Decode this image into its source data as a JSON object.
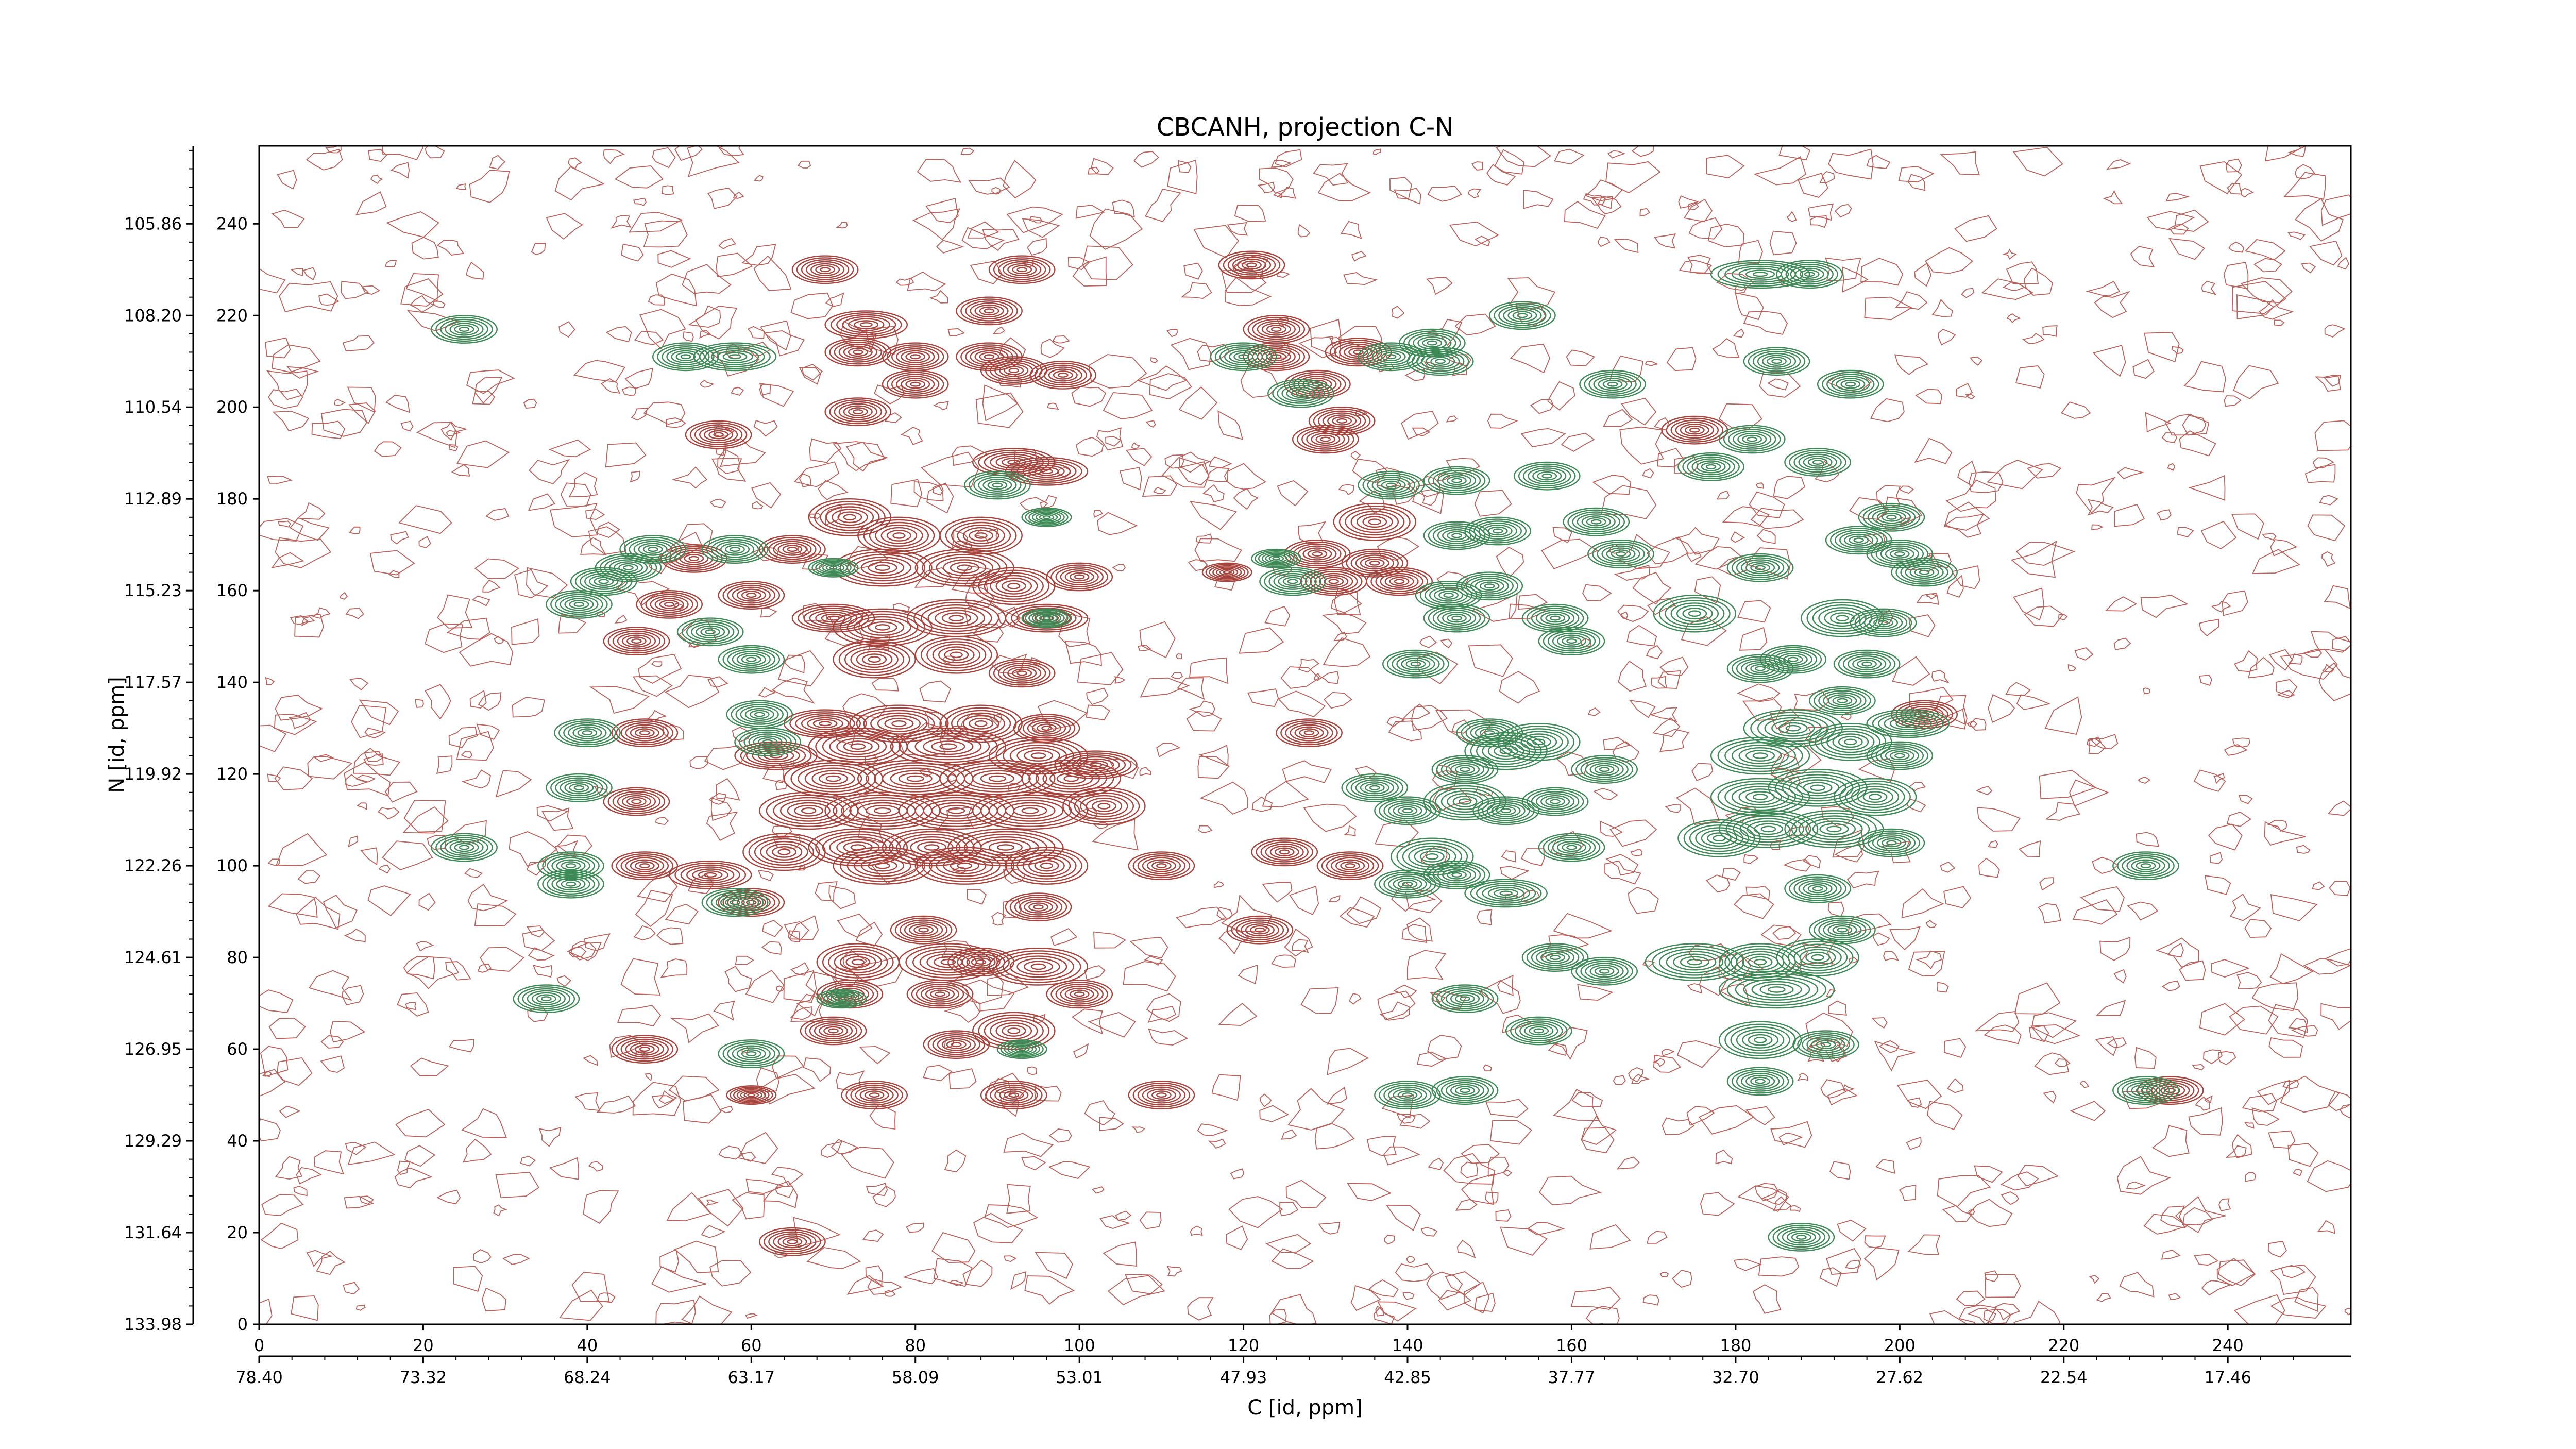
{
  "chart_data": {
    "type": "contour",
    "title": "CBCANH, projection C-N",
    "xlabel": "C [id, ppm]",
    "ylabel": "N [id, ppm]",
    "x_index_ticks": [
      0,
      20,
      40,
      60,
      80,
      100,
      120,
      140,
      160,
      180,
      200,
      220,
      240
    ],
    "y_index_ticks": [
      0,
      20,
      40,
      60,
      80,
      100,
      120,
      140,
      160,
      180,
      200,
      220,
      240
    ],
    "x_ppm_ticks": [
      "78.40",
      "73.32",
      "68.24",
      "63.17",
      "58.09",
      "53.01",
      "47.93",
      "42.85",
      "37.77",
      "32.70",
      "27.62",
      "22.54",
      "17.46"
    ],
    "y_ppm_ticks": [
      "133.98",
      "131.64",
      "129.29",
      "126.95",
      "124.61",
      "122.26",
      "119.92",
      "117.57",
      "115.23",
      "112.89",
      "110.54",
      "108.20",
      "105.86"
    ],
    "xlim": [
      0,
      255
    ],
    "ylim": [
      0,
      257
    ],
    "colors": {
      "positive": "#a8433c",
      "negative": "#3d8a56",
      "noise": "#b9615a"
    },
    "peaks_positive": [
      [
        65,
        18,
        4,
        3
      ],
      [
        92,
        50,
        4,
        3
      ],
      [
        75,
        50,
        4,
        3
      ],
      [
        60,
        50,
        3,
        2
      ],
      [
        110,
        50,
        4,
        3
      ],
      [
        47,
        60,
        4,
        3
      ],
      [
        70,
        64,
        4,
        3
      ],
      [
        85,
        61,
        4,
        3
      ],
      [
        92,
        64,
        5,
        4
      ],
      [
        100,
        72,
        4,
        3
      ],
      [
        72,
        72,
        4,
        3
      ],
      [
        83,
        72,
        4,
        3
      ],
      [
        73,
        79,
        5,
        4
      ],
      [
        84,
        79,
        6,
        4
      ],
      [
        95,
        78,
        6,
        4
      ],
      [
        88,
        79,
        4,
        3
      ],
      [
        81,
        86,
        4,
        3
      ],
      [
        122,
        86,
        4,
        3
      ],
      [
        60,
        92,
        4,
        3
      ],
      [
        95,
        91,
        4,
        3
      ],
      [
        110,
        100,
        4,
        3
      ],
      [
        47,
        100,
        4,
        3
      ],
      [
        55,
        98,
        5,
        3
      ],
      [
        125,
        103,
        4,
        3
      ],
      [
        133,
        100,
        4,
        3
      ],
      [
        64,
        103,
        5,
        4
      ],
      [
        73,
        104,
        6,
        4
      ],
      [
        82,
        104,
        6,
        4
      ],
      [
        91,
        104,
        7,
        4
      ],
      [
        76,
        100,
        6,
        4
      ],
      [
        86,
        100,
        6,
        4
      ],
      [
        96,
        100,
        5,
        4
      ],
      [
        67,
        112,
        6,
        4
      ],
      [
        76,
        112,
        7,
        4
      ],
      [
        85,
        112,
        7,
        4
      ],
      [
        94,
        112,
        7,
        4
      ],
      [
        103,
        113,
        5,
        4
      ],
      [
        70,
        119,
        6,
        4
      ],
      [
        80,
        119,
        7,
        4
      ],
      [
        90,
        119,
        7,
        4
      ],
      [
        99,
        119,
        6,
        4
      ],
      [
        63,
        124,
        5,
        3
      ],
      [
        73,
        126,
        6,
        4
      ],
      [
        84,
        126,
        7,
        4
      ],
      [
        95,
        124,
        6,
        4
      ],
      [
        102,
        122,
        5,
        3
      ],
      [
        69,
        131,
        5,
        3
      ],
      [
        78,
        131,
        6,
        4
      ],
      [
        88,
        131,
        5,
        4
      ],
      [
        96,
        130,
        4,
        3
      ],
      [
        47,
        129,
        4,
        3
      ],
      [
        46,
        114,
        4,
        3
      ],
      [
        128,
        129,
        4,
        3
      ],
      [
        203,
        133,
        4,
        3
      ],
      [
        75,
        145,
        5,
        4
      ],
      [
        85,
        146,
        5,
        4
      ],
      [
        93,
        142,
        4,
        3
      ],
      [
        76,
        152,
        6,
        4
      ],
      [
        85,
        154,
        6,
        4
      ],
      [
        70,
        154,
        5,
        3
      ],
      [
        96,
        154,
        5,
        3
      ],
      [
        46,
        149,
        4,
        3
      ],
      [
        50,
        157,
        4,
        3
      ],
      [
        60,
        159,
        4,
        3
      ],
      [
        92,
        161,
        5,
        4
      ],
      [
        100,
        163,
        4,
        3
      ],
      [
        76,
        165,
        6,
        4
      ],
      [
        86,
        165,
        6,
        4
      ],
      [
        53,
        167,
        4,
        3
      ],
      [
        65,
        169,
        4,
        3
      ],
      [
        78,
        172,
        5,
        4
      ],
      [
        88,
        172,
        5,
        4
      ],
      [
        72,
        176,
        5,
        4
      ],
      [
        136,
        175,
        5,
        4
      ],
      [
        136,
        166,
        4,
        3
      ],
      [
        131,
        162,
        4,
        3
      ],
      [
        118,
        164,
        3,
        2
      ],
      [
        129,
        168,
        4,
        3
      ],
      [
        139,
        162,
        4,
        3
      ],
      [
        96,
        186,
        5,
        3
      ],
      [
        92,
        188,
        5,
        3
      ],
      [
        56,
        194,
        4,
        3
      ],
      [
        73,
        199,
        4,
        3
      ],
      [
        80,
        205,
        4,
        3
      ],
      [
        80,
        211,
        4,
        3
      ],
      [
        73,
        212,
        4,
        3
      ],
      [
        92,
        208,
        4,
        3
      ],
      [
        89,
        211,
        4,
        3
      ],
      [
        98,
        207,
        4,
        3
      ],
      [
        74,
        218,
        5,
        3
      ],
      [
        89,
        221,
        4,
        3
      ],
      [
        69,
        230,
        4,
        3
      ],
      [
        93,
        230,
        4,
        3
      ],
      [
        121,
        231,
        4,
        3
      ],
      [
        124,
        211,
        4,
        3
      ],
      [
        129,
        205,
        4,
        3
      ],
      [
        124,
        217,
        4,
        3
      ],
      [
        132,
        197,
        4,
        3
      ],
      [
        130,
        193,
        4,
        3
      ],
      [
        134,
        212,
        4,
        3
      ],
      [
        175,
        195,
        4,
        3
      ],
      [
        233,
        51,
        4,
        3
      ]
    ],
    "peaks_negative": [
      [
        39,
        117,
        4,
        3
      ],
      [
        40,
        129,
        4,
        3
      ],
      [
        25,
        104,
        4,
        3
      ],
      [
        38,
        100,
        4,
        3
      ],
      [
        38,
        96,
        4,
        3
      ],
      [
        58,
        92,
        4,
        3
      ],
      [
        60,
        59,
        4,
        3
      ],
      [
        35,
        71,
        4,
        3
      ],
      [
        71,
        71,
        3,
        2
      ],
      [
        93,
        60,
        3,
        2
      ],
      [
        140,
        50,
        4,
        3
      ],
      [
        147,
        51,
        4,
        3
      ],
      [
        147,
        71,
        4,
        3
      ],
      [
        156,
        64,
        4,
        3
      ],
      [
        158,
        80,
        4,
        3
      ],
      [
        164,
        77,
        4,
        3
      ],
      [
        175,
        79,
        6,
        4
      ],
      [
        183,
        79,
        5,
        4
      ],
      [
        190,
        80,
        5,
        4
      ],
      [
        185,
        73,
        7,
        4
      ],
      [
        191,
        61,
        4,
        3
      ],
      [
        183,
        62,
        5,
        4
      ],
      [
        183,
        53,
        4,
        3
      ],
      [
        188,
        19,
        4,
        3
      ],
      [
        193,
        86,
        4,
        3
      ],
      [
        190,
        95,
        4,
        3
      ],
      [
        178,
        106,
        5,
        4
      ],
      [
        184,
        108,
        6,
        4
      ],
      [
        192,
        108,
        6,
        4
      ],
      [
        199,
        105,
        4,
        3
      ],
      [
        140,
        96,
        4,
        3
      ],
      [
        143,
        102,
        5,
        4
      ],
      [
        146,
        98,
        4,
        3
      ],
      [
        152,
        94,
        5,
        3
      ],
      [
        160,
        104,
        4,
        3
      ],
      [
        164,
        121,
        4,
        3
      ],
      [
        147,
        114,
        5,
        4
      ],
      [
        147,
        121,
        4,
        3
      ],
      [
        152,
        112,
        4,
        3
      ],
      [
        158,
        114,
        4,
        3
      ],
      [
        136,
        117,
        4,
        3
      ],
      [
        140,
        112,
        4,
        3
      ],
      [
        152,
        125,
        5,
        4
      ],
      [
        156,
        127,
        5,
        4
      ],
      [
        150,
        129,
        4,
        3
      ],
      [
        183,
        115,
        6,
        4
      ],
      [
        190,
        117,
        6,
        4
      ],
      [
        197,
        115,
        5,
        4
      ],
      [
        183,
        124,
        6,
        4
      ],
      [
        187,
        130,
        6,
        4
      ],
      [
        194,
        127,
        5,
        4
      ],
      [
        201,
        131,
        5,
        3
      ],
      [
        200,
        124,
        4,
        3
      ],
      [
        193,
        136,
        4,
        3
      ],
      [
        183,
        143,
        4,
        3
      ],
      [
        187,
        145,
        4,
        3
      ],
      [
        196,
        144,
        4,
        3
      ],
      [
        193,
        154,
        5,
        4
      ],
      [
        198,
        153,
        4,
        3
      ],
      [
        175,
        155,
        5,
        4
      ],
      [
        160,
        149,
        4,
        3
      ],
      [
        158,
        154,
        4,
        3
      ],
      [
        146,
        154,
        4,
        3
      ],
      [
        141,
        144,
        4,
        3
      ],
      [
        145,
        159,
        4,
        3
      ],
      [
        150,
        161,
        4,
        3
      ],
      [
        166,
        168,
        4,
        3
      ],
      [
        163,
        175,
        4,
        3
      ],
      [
        151,
        173,
        4,
        3
      ],
      [
        146,
        172,
        4,
        3
      ],
      [
        138,
        183,
        4,
        3
      ],
      [
        146,
        184,
        4,
        3
      ],
      [
        157,
        185,
        4,
        3
      ],
      [
        177,
        187,
        4,
        3
      ],
      [
        183,
        165,
        4,
        3
      ],
      [
        200,
        168,
        4,
        3
      ],
      [
        203,
        164,
        4,
        3
      ],
      [
        195,
        171,
        4,
        3
      ],
      [
        199,
        176,
        4,
        3
      ],
      [
        190,
        188,
        4,
        3
      ],
      [
        182,
        193,
        4,
        3
      ],
      [
        185,
        210,
        4,
        3
      ],
      [
        194,
        205,
        4,
        3
      ],
      [
        165,
        205,
        4,
        3
      ],
      [
        154,
        220,
        4,
        3
      ],
      [
        143,
        214,
        4,
        3
      ],
      [
        144,
        210,
        4,
        3
      ],
      [
        138,
        211,
        4,
        3
      ],
      [
        183,
        229,
        6,
        3
      ],
      [
        189,
        229,
        4,
        3
      ],
      [
        25,
        217,
        4,
        3
      ],
      [
        52,
        211,
        4,
        3
      ],
      [
        58,
        211,
        5,
        3
      ],
      [
        48,
        169,
        4,
        3
      ],
      [
        58,
        169,
        4,
        3
      ],
      [
        42,
        162,
        4,
        3
      ],
      [
        45,
        165,
        4,
        3
      ],
      [
        39,
        157,
        4,
        3
      ],
      [
        55,
        151,
        4,
        3
      ],
      [
        60,
        145,
        4,
        3
      ],
      [
        61,
        133,
        4,
        3
      ],
      [
        62,
        127,
        4,
        3
      ],
      [
        90,
        183,
        4,
        3
      ],
      [
        96,
        176,
        3,
        2
      ],
      [
        70,
        165,
        3,
        2
      ],
      [
        96,
        154,
        3,
        2
      ],
      [
        230,
        51,
        4,
        3
      ],
      [
        230,
        100,
        4,
        3
      ],
      [
        126,
        162,
        4,
        3
      ],
      [
        124,
        167,
        3,
        2
      ],
      [
        127,
        203,
        4,
        3
      ],
      [
        120,
        211,
        4,
        3
      ]
    ]
  }
}
